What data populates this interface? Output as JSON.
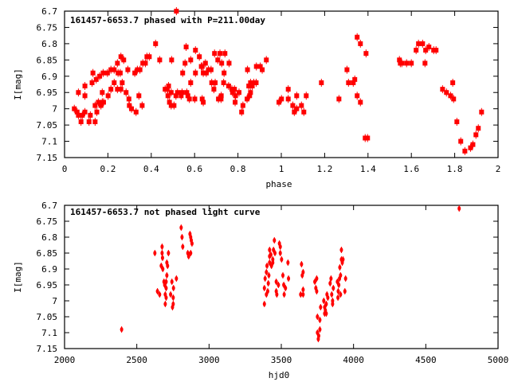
{
  "colors": {
    "points": "#ff0000",
    "axes": "#000000"
  },
  "chart_data": [
    {
      "type": "scatter",
      "title": "161457-6653.7 phased with P=211.00day",
      "xlabel": "phase",
      "ylabel": "I[mag]",
      "xlim": [
        0,
        2
      ],
      "ylim": [
        7.15,
        6.7
      ],
      "y_inverted": true,
      "xticks": [
        "0",
        "0.2",
        "0.4",
        "0.6",
        "0.8",
        "1",
        "1.2",
        "1.4",
        "1.6",
        "1.8",
        "2"
      ],
      "xtick_values": [
        0,
        0.2,
        0.4,
        0.6,
        0.8,
        1,
        1.2,
        1.4,
        1.6,
        1.8,
        2
      ],
      "yticks": [
        "6.7",
        "6.75",
        "6.8",
        "6.85",
        "6.9",
        "6.95",
        "7",
        "7.05",
        "7.1",
        "7.15"
      ],
      "ytick_values": [
        6.7,
        6.75,
        6.8,
        6.85,
        6.9,
        6.95,
        7,
        7.05,
        7.1,
        7.15
      ],
      "grid": false,
      "points": [
        [
          0.045,
          7.0
        ],
        [
          0.058,
          7.01
        ],
        [
          0.064,
          7.02
        ],
        [
          0.064,
          6.95
        ],
        [
          0.076,
          7.04
        ],
        [
          0.082,
          7.02
        ],
        [
          0.094,
          7.01
        ],
        [
          0.094,
          6.96
        ],
        [
          0.094,
          6.93
        ],
        [
          0.113,
          7.04
        ],
        [
          0.119,
          7.02
        ],
        [
          0.127,
          6.92
        ],
        [
          0.131,
          6.89
        ],
        [
          0.141,
          7.04
        ],
        [
          0.141,
          6.99
        ],
        [
          0.149,
          7.01
        ],
        [
          0.146,
          6.91
        ],
        [
          0.156,
          6.98
        ],
        [
          0.162,
          6.9
        ],
        [
          0.168,
          6.99
        ],
        [
          0.174,
          6.98
        ],
        [
          0.174,
          6.95
        ],
        [
          0.18,
          6.98
        ],
        [
          0.178,
          6.89
        ],
        [
          0.198,
          6.89
        ],
        [
          0.201,
          6.96
        ],
        [
          0.214,
          6.94
        ],
        [
          0.214,
          6.88
        ],
        [
          0.229,
          6.92
        ],
        [
          0.229,
          6.88
        ],
        [
          0.244,
          6.86
        ],
        [
          0.244,
          6.94
        ],
        [
          0.247,
          6.89
        ],
        [
          0.257,
          6.89
        ],
        [
          0.26,
          6.84
        ],
        [
          0.26,
          6.94
        ],
        [
          0.266,
          6.92
        ],
        [
          0.273,
          6.85
        ],
        [
          0.284,
          6.95
        ],
        [
          0.292,
          6.88
        ],
        [
          0.297,
          6.97
        ],
        [
          0.299,
          6.99
        ],
        [
          0.309,
          7.0
        ],
        [
          0.324,
          6.89
        ],
        [
          0.33,
          7.01
        ],
        [
          0.336,
          6.88
        ],
        [
          0.343,
          6.96
        ],
        [
          0.348,
          6.88
        ],
        [
          0.358,
          6.99
        ],
        [
          0.361,
          6.86
        ],
        [
          0.373,
          6.86
        ],
        [
          0.38,
          6.84
        ],
        [
          0.391,
          6.84
        ],
        [
          0.42,
          6.8
        ],
        [
          0.439,
          6.85
        ],
        [
          0.464,
          6.94
        ],
        [
          0.474,
          6.94
        ],
        [
          0.48,
          6.93
        ],
        [
          0.477,
          6.96
        ],
        [
          0.484,
          6.98
        ],
        [
          0.492,
          6.95
        ],
        [
          0.494,
          6.85
        ],
        [
          0.492,
          6.99
        ],
        [
          0.505,
          6.99
        ],
        [
          0.514,
          6.96
        ],
        [
          0.516,
          6.7
        ],
        [
          0.521,
          6.95
        ],
        [
          0.538,
          6.96
        ],
        [
          0.542,
          6.95
        ],
        [
          0.545,
          6.89
        ],
        [
          0.556,
          6.86
        ],
        [
          0.561,
          6.81
        ],
        [
          0.564,
          6.95
        ],
        [
          0.569,
          6.96
        ],
        [
          0.576,
          6.97
        ],
        [
          0.582,
          6.92
        ],
        [
          0.582,
          6.85
        ],
        [
          0.601,
          6.97
        ],
        [
          0.604,
          6.89
        ],
        [
          0.604,
          6.82
        ],
        [
          0.622,
          6.84
        ],
        [
          0.631,
          6.87
        ],
        [
          0.635,
          6.87
        ],
        [
          0.635,
          6.97
        ],
        [
          0.64,
          6.98
        ],
        [
          0.64,
          6.89
        ],
        [
          0.65,
          6.86
        ],
        [
          0.654,
          6.89
        ],
        [
          0.664,
          6.88
        ],
        [
          0.676,
          6.88
        ],
        [
          0.679,
          6.92
        ],
        [
          0.689,
          6.94
        ],
        [
          0.695,
          6.92
        ],
        [
          0.692,
          6.83
        ],
        [
          0.707,
          6.85
        ],
        [
          0.71,
          6.97
        ],
        [
          0.717,
          6.83
        ],
        [
          0.722,
          6.97
        ],
        [
          0.723,
          6.96
        ],
        [
          0.725,
          6.86
        ],
        [
          0.734,
          6.92
        ],
        [
          0.736,
          6.89
        ],
        [
          0.74,
          6.83
        ],
        [
          0.757,
          6.93
        ],
        [
          0.759,
          6.86
        ],
        [
          0.772,
          6.94
        ],
        [
          0.775,
          6.95
        ],
        [
          0.784,
          6.94
        ],
        [
          0.787,
          6.98
        ],
        [
          0.789,
          6.96
        ],
        [
          0.805,
          6.95
        ],
        [
          0.817,
          7.01
        ],
        [
          0.823,
          6.99
        ],
        [
          0.842,
          6.97
        ],
        [
          0.844,
          6.88
        ],
        [
          0.85,
          6.93
        ],
        [
          0.854,
          6.96
        ],
        [
          0.858,
          6.95
        ],
        [
          0.858,
          6.92
        ],
        [
          0.866,
          6.93
        ],
        [
          0.873,
          6.92
        ],
        [
          0.884,
          6.92
        ],
        [
          0.885,
          6.87
        ],
        [
          0.903,
          6.87
        ],
        [
          0.912,
          6.88
        ],
        [
          0.931,
          6.85
        ],
        [
          0.989,
          6.98
        ],
        [
          1.001,
          6.97
        ],
        [
          1.032,
          6.94
        ],
        [
          1.032,
          6.97
        ],
        [
          1.053,
          6.99
        ],
        [
          1.06,
          7.01
        ],
        [
          1.071,
          7.0
        ],
        [
          1.071,
          6.96
        ],
        [
          1.093,
          6.99
        ],
        [
          1.104,
          7.01
        ],
        [
          1.115,
          6.96
        ],
        [
          1.185,
          6.92
        ],
        [
          1.266,
          6.97
        ],
        [
          1.303,
          6.88
        ],
        [
          1.31,
          6.92
        ],
        [
          1.332,
          6.92
        ],
        [
          1.339,
          6.91
        ],
        [
          1.35,
          6.78
        ],
        [
          1.35,
          6.96
        ],
        [
          1.365,
          6.8
        ],
        [
          1.365,
          6.98
        ],
        [
          1.391,
          6.83
        ],
        [
          1.387,
          7.09
        ],
        [
          1.398,
          7.09
        ],
        [
          1.545,
          6.85
        ],
        [
          1.549,
          6.86
        ],
        [
          1.556,
          6.86
        ],
        [
          1.578,
          6.86
        ],
        [
          1.6,
          6.86
        ],
        [
          1.622,
          6.82
        ],
        [
          1.633,
          6.8
        ],
        [
          1.652,
          6.8
        ],
        [
          1.663,
          6.86
        ],
        [
          1.666,
          6.82
        ],
        [
          1.681,
          6.81
        ],
        [
          1.703,
          6.82
        ],
        [
          1.714,
          6.82
        ],
        [
          1.744,
          6.94
        ],
        [
          1.762,
          6.95
        ],
        [
          1.781,
          6.96
        ],
        [
          1.791,
          6.92
        ],
        [
          1.795,
          6.97
        ],
        [
          1.81,
          7.04
        ],
        [
          1.828,
          7.1
        ],
        [
          1.847,
          7.13
        ],
        [
          1.873,
          7.12
        ],
        [
          1.884,
          7.11
        ],
        [
          1.898,
          7.08
        ],
        [
          1.909,
          7.06
        ],
        [
          1.924,
          7.01
        ]
      ]
    },
    {
      "type": "scatter",
      "title": "161457-6653.7 not phased light curve",
      "xlabel": "hjd0",
      "ylabel": "I[mag]",
      "xlim": [
        2000,
        5000
      ],
      "ylim": [
        7.15,
        6.7
      ],
      "y_inverted": true,
      "xticks": [
        "2000",
        "2500",
        "3000",
        "3500",
        "4000",
        "4500",
        "5000"
      ],
      "xtick_values": [
        2000,
        2500,
        3000,
        3500,
        4000,
        4500,
        5000
      ],
      "yticks": [
        "6.7",
        "6.75",
        "6.8",
        "6.85",
        "6.9",
        "6.95",
        "7",
        "7.05",
        "7.1",
        "7.15"
      ],
      "ytick_values": [
        6.7,
        6.75,
        6.8,
        6.85,
        6.9,
        6.95,
        7,
        7.05,
        7.1,
        7.15
      ],
      "grid": false,
      "points": [
        [
          2395,
          7.09
        ],
        [
          2625,
          6.85
        ],
        [
          2675,
          6.83
        ],
        [
          2675,
          6.85
        ],
        [
          2678,
          6.865
        ],
        [
          2669,
          6.89
        ],
        [
          2680,
          6.9
        ],
        [
          2708,
          6.88
        ],
        [
          2713,
          6.89
        ],
        [
          2719,
          6.85
        ],
        [
          2708,
          6.92
        ],
        [
          2688,
          6.94
        ],
        [
          2703,
          6.94
        ],
        [
          2693,
          6.95
        ],
        [
          2703,
          6.96
        ],
        [
          2643,
          6.97
        ],
        [
          2658,
          6.98
        ],
        [
          2697,
          6.98
        ],
        [
          2703,
          6.99
        ],
        [
          2697,
          7.01
        ],
        [
          2734,
          6.98
        ],
        [
          2743,
          6.94
        ],
        [
          2754,
          6.96
        ],
        [
          2752,
          6.99
        ],
        [
          2752,
          7.01
        ],
        [
          2747,
          7.02
        ],
        [
          2774,
          6.93
        ],
        [
          2807,
          6.77
        ],
        [
          2813,
          6.8
        ],
        [
          2818,
          6.83
        ],
        [
          2868,
          6.79
        ],
        [
          2873,
          6.8
        ],
        [
          2877,
          6.81
        ],
        [
          2882,
          6.82
        ],
        [
          2853,
          6.85
        ],
        [
          2859,
          6.86
        ],
        [
          2873,
          6.85
        ],
        [
          3383,
          7.01
        ],
        [
          3383,
          6.96
        ],
        [
          3397,
          6.98
        ],
        [
          3388,
          6.93
        ],
        [
          3397,
          6.91
        ],
        [
          3401,
          6.89
        ],
        [
          3406,
          6.97
        ],
        [
          3410,
          6.945
        ],
        [
          3414,
          6.92
        ],
        [
          3419,
          6.88
        ],
        [
          3419,
          6.86
        ],
        [
          3419,
          6.84
        ],
        [
          3428,
          6.855
        ],
        [
          3432,
          6.89
        ],
        [
          3441,
          6.87
        ],
        [
          3441,
          6.88
        ],
        [
          3446,
          6.84
        ],
        [
          3456,
          6.85
        ],
        [
          3452,
          6.81
        ],
        [
          3465,
          6.94
        ],
        [
          3465,
          6.97
        ],
        [
          3469,
          6.98
        ],
        [
          3480,
          6.95
        ],
        [
          3487,
          6.82
        ],
        [
          3493,
          6.83
        ],
        [
          3493,
          6.85
        ],
        [
          3502,
          6.87
        ],
        [
          3511,
          6.92
        ],
        [
          3517,
          6.95
        ],
        [
          3520,
          6.98
        ],
        [
          3529,
          6.96
        ],
        [
          3546,
          6.88
        ],
        [
          3550,
          6.93
        ],
        [
          3634,
          6.98
        ],
        [
          3640,
          6.885
        ],
        [
          3645,
          6.92
        ],
        [
          3651,
          6.91
        ],
        [
          3651,
          6.965
        ],
        [
          3651,
          6.98
        ],
        [
          3732,
          6.94
        ],
        [
          3739,
          6.96
        ],
        [
          3745,
          6.93
        ],
        [
          3745,
          6.97
        ],
        [
          3750,
          7.05
        ],
        [
          3750,
          7.1
        ],
        [
          3756,
          7.12
        ],
        [
          3759,
          7.11
        ],
        [
          3767,
          7.09
        ],
        [
          3767,
          7.06
        ],
        [
          3772,
          7.02
        ],
        [
          3794,
          7.0
        ],
        [
          3800,
          7.02
        ],
        [
          3805,
          7.03
        ],
        [
          3800,
          7.04
        ],
        [
          3811,
          7.01
        ],
        [
          3811,
          7.04
        ],
        [
          3816,
          6.98
        ],
        [
          3822,
          6.99
        ],
        [
          3838,
          6.945
        ],
        [
          3844,
          6.93
        ],
        [
          3849,
          6.98
        ],
        [
          3855,
          7.0
        ],
        [
          3855,
          7.01
        ],
        [
          3860,
          6.96
        ],
        [
          3888,
          6.94
        ],
        [
          3892,
          6.99
        ],
        [
          3894,
          6.97
        ],
        [
          3898,
          6.95
        ],
        [
          3903,
          6.93
        ],
        [
          3910,
          6.92
        ],
        [
          3910,
          6.98
        ],
        [
          3905,
          6.895
        ],
        [
          3916,
          6.87
        ],
        [
          3922,
          6.88
        ],
        [
          3927,
          6.87
        ],
        [
          3916,
          6.84
        ],
        [
          3940,
          6.97
        ],
        [
          3945,
          6.93
        ],
        [
          4731,
          6.71
        ]
      ]
    }
  ]
}
